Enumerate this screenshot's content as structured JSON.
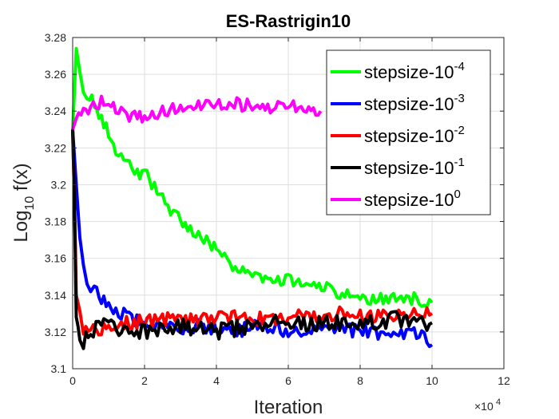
{
  "chart_data": {
    "type": "line",
    "title": "ES-Rastrigin10",
    "xlabel": "Iteration",
    "ylabel_main": "Log",
    "ylabel_sub": "10",
    "ylabel_rest": " f(x)",
    "x_exponent_base": "×10",
    "x_exponent_power": "4",
    "xlim": [
      0,
      12
    ],
    "ylim": [
      3.1,
      3.28
    ],
    "xticks": [
      0,
      2,
      4,
      6,
      8,
      10,
      12
    ],
    "xtick_labels": [
      "0",
      "2",
      "4",
      "6",
      "8",
      "10",
      "12"
    ],
    "yticks": [
      3.1,
      3.12,
      3.14,
      3.16,
      3.18,
      3.2,
      3.22,
      3.24,
      3.26,
      3.28
    ],
    "ytick_labels": [
      "3.1",
      "3.12",
      "3.14",
      "3.16",
      "3.18",
      "3.2",
      "3.22",
      "3.24",
      "3.26",
      "3.28"
    ],
    "grid": true,
    "legend_position": "top-right",
    "series": [
      {
        "name": "stepsize-10^-4",
        "label_base": "stepsize-10",
        "label_exp": "-4",
        "color": "#00ff00",
        "x": [
          0,
          0.1,
          0.2,
          0.3,
          0.4,
          0.6,
          0.8,
          1.0,
          1.2,
          1.5,
          1.8,
          2.0,
          2.2,
          2.5,
          2.8,
          3.0,
          3.2,
          3.5,
          3.8,
          4.0,
          4.3,
          4.6,
          5.0,
          5.5,
          6.0,
          6.5,
          7.0,
          7.5,
          8.0,
          8.5,
          9.0,
          9.5,
          10.0
        ],
        "y": [
          3.23,
          3.274,
          3.262,
          3.252,
          3.25,
          3.245,
          3.235,
          3.228,
          3.22,
          3.212,
          3.205,
          3.208,
          3.2,
          3.192,
          3.185,
          3.18,
          3.176,
          3.172,
          3.168,
          3.165,
          3.158,
          3.155,
          3.152,
          3.148,
          3.148,
          3.146,
          3.144,
          3.14,
          3.138,
          3.137,
          3.14,
          3.138,
          3.136
        ]
      },
      {
        "name": "stepsize-10^-3",
        "label_base": "stepsize-10",
        "label_exp": "-3",
        "color": "#0000ff",
        "x": [
          0,
          0.1,
          0.2,
          0.3,
          0.4,
          0.5,
          0.6,
          0.8,
          1.0,
          1.2,
          1.5,
          2.0,
          2.5,
          3.0,
          3.5,
          4.0,
          4.5,
          5.0,
          5.5,
          6.0,
          6.5,
          7.0,
          7.5,
          8.0,
          8.5,
          9.0,
          9.5,
          10.0
        ],
        "y": [
          3.23,
          3.2,
          3.175,
          3.16,
          3.15,
          3.145,
          3.142,
          3.138,
          3.135,
          3.132,
          3.128,
          3.126,
          3.124,
          3.122,
          3.124,
          3.122,
          3.12,
          3.122,
          3.124,
          3.12,
          3.122,
          3.12,
          3.122,
          3.12,
          3.12,
          3.118,
          3.12,
          3.113
        ]
      },
      {
        "name": "stepsize-10^-2",
        "label_base": "stepsize-10",
        "label_exp": "-2",
        "color": "#ff0000",
        "x": [
          0,
          0.05,
          0.1,
          0.2,
          0.3,
          0.5,
          0.8,
          1.0,
          1.5,
          2.0,
          2.5,
          3.0,
          3.5,
          4.0,
          4.5,
          5.0,
          5.5,
          6.0,
          6.5,
          7.0,
          7.5,
          8.0,
          8.5,
          9.0,
          9.5,
          10.0
        ],
        "y": [
          3.23,
          3.19,
          3.14,
          3.128,
          3.122,
          3.12,
          3.12,
          3.122,
          3.125,
          3.126,
          3.127,
          3.126,
          3.126,
          3.127,
          3.128,
          3.128,
          3.126,
          3.128,
          3.129,
          3.128,
          3.13,
          3.128,
          3.128,
          3.128,
          3.129,
          3.13
        ]
      },
      {
        "name": "stepsize-10^-1",
        "label_base": "stepsize-10",
        "label_exp": "-1",
        "color": "#000000",
        "x": [
          0,
          0.05,
          0.1,
          0.15,
          0.2,
          0.3,
          0.5,
          0.8,
          1.0,
          1.5,
          2.0,
          2.5,
          3.0,
          3.5,
          4.0,
          4.5,
          5.0,
          5.5,
          6.0,
          6.5,
          7.0,
          7.5,
          8.0,
          8.5,
          9.0,
          9.5,
          10.0
        ],
        "y": [
          3.23,
          3.19,
          3.128,
          3.122,
          3.12,
          3.115,
          3.12,
          3.124,
          3.122,
          3.122,
          3.12,
          3.122,
          3.124,
          3.122,
          3.12,
          3.122,
          3.124,
          3.125,
          3.126,
          3.124,
          3.125,
          3.124,
          3.125,
          3.126,
          3.127,
          3.126,
          3.125
        ]
      },
      {
        "name": "stepsize-10^0",
        "label_base": "stepsize-10",
        "label_exp": "0",
        "color": "#ff00ff",
        "x": [
          0,
          0.1,
          0.3,
          0.5,
          0.8,
          1.0,
          1.2,
          1.5,
          1.8,
          2.0,
          2.5,
          3.0,
          3.5,
          4.0,
          4.5,
          5.0,
          5.5,
          6.0,
          6.5,
          6.9
        ],
        "y": [
          3.23,
          3.236,
          3.24,
          3.243,
          3.245,
          3.244,
          3.24,
          3.238,
          3.236,
          3.237,
          3.24,
          3.242,
          3.243,
          3.244,
          3.244,
          3.243,
          3.242,
          3.243,
          3.242,
          3.24
        ]
      }
    ]
  }
}
